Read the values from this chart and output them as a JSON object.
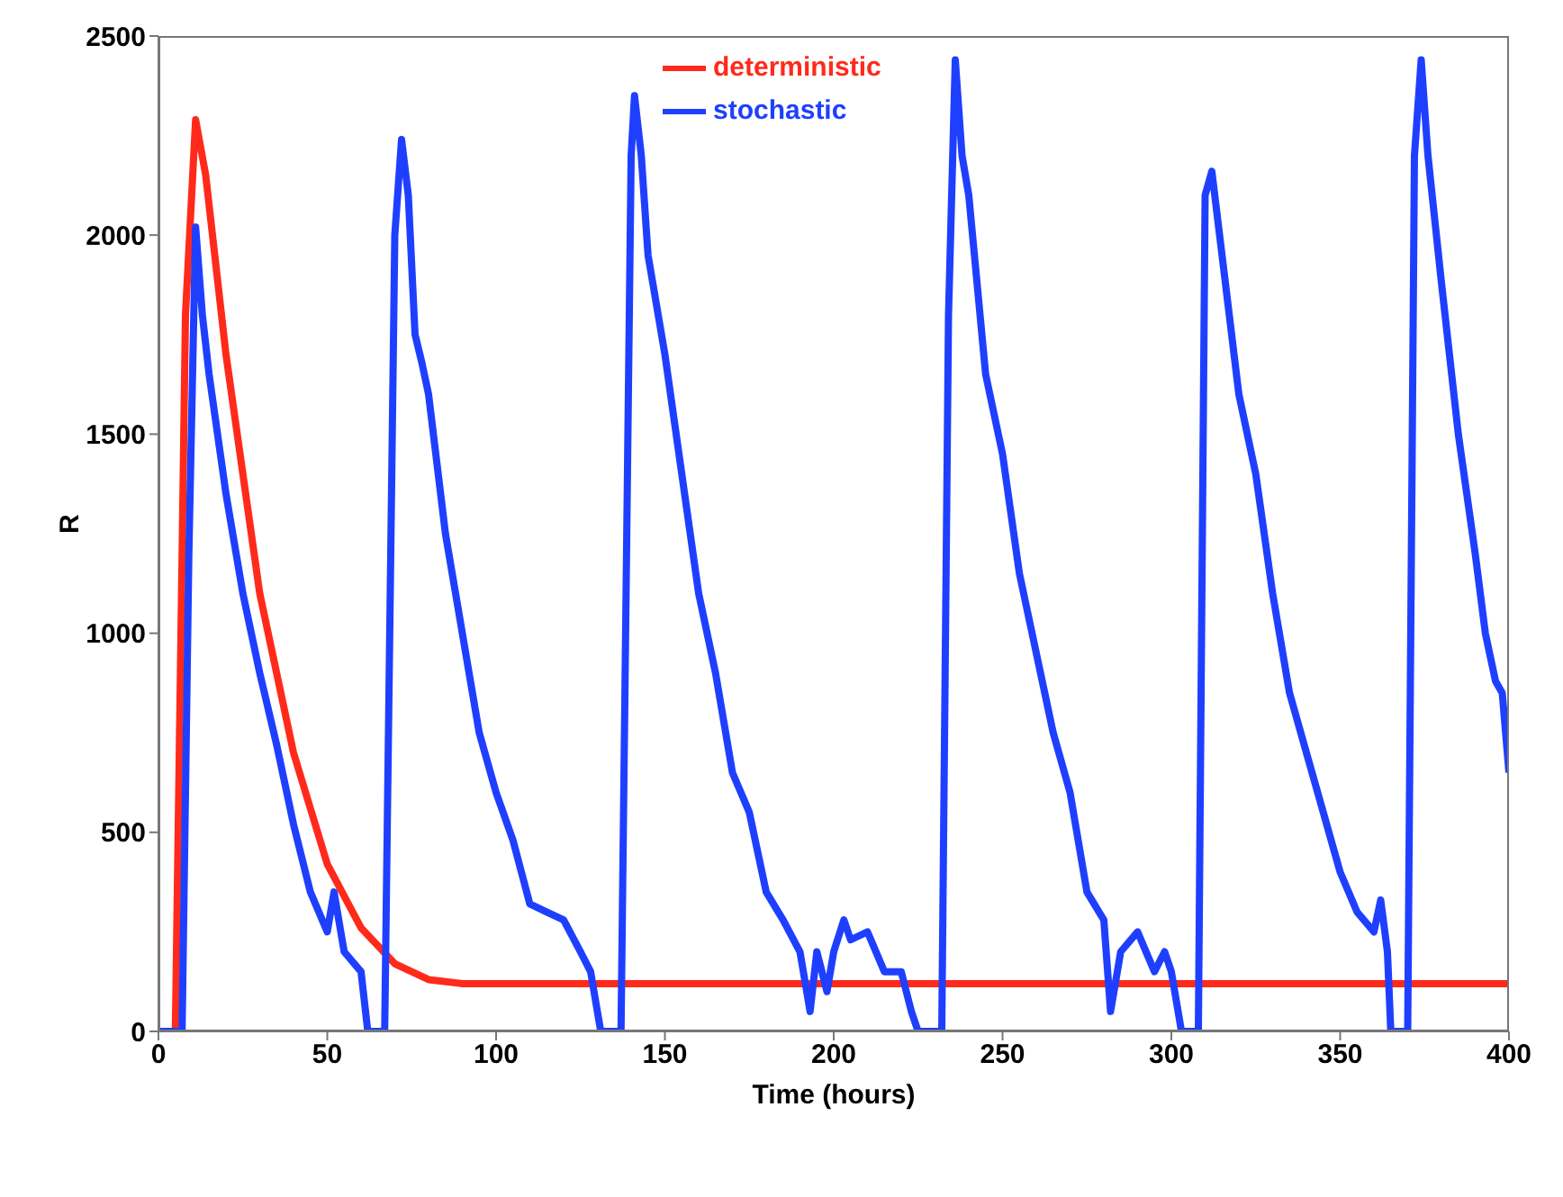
{
  "chart_data": {
    "type": "line",
    "xlabel": "Time (hours)",
    "ylabel": "R",
    "xlim": [
      0,
      400
    ],
    "xticks": [
      0,
      50,
      100,
      150,
      200,
      250,
      300,
      350,
      400
    ],
    "ylim": [
      0,
      2500
    ],
    "yticks": [
      0,
      500,
      1000,
      1500,
      2000,
      2500
    ],
    "grid": false,
    "legend": "top",
    "marker": "none",
    "line_style": "solid",
    "series": [
      {
        "name": "deterministic",
        "color": "#ff2a1a",
        "x": [
          0,
          5,
          8,
          11,
          14,
          20,
          30,
          40,
          50,
          60,
          70,
          80,
          90,
          100,
          400
        ],
        "values": [
          0,
          0,
          1800,
          2290,
          2150,
          1700,
          1100,
          700,
          420,
          260,
          170,
          130,
          120,
          120,
          120
        ]
      },
      {
        "name": "stochastic",
        "color": "#1f3fff",
        "x": [
          0,
          7,
          9,
          11,
          13,
          15,
          20,
          25,
          30,
          35,
          40,
          45,
          50,
          52,
          55,
          60,
          62,
          67,
          70,
          72,
          74,
          76,
          78,
          80,
          85,
          90,
          95,
          100,
          105,
          110,
          115,
          120,
          125,
          128,
          130,
          131,
          137,
          140,
          141,
          143,
          145,
          150,
          155,
          160,
          165,
          170,
          175,
          180,
          185,
          190,
          193,
          195,
          198,
          200,
          203,
          205,
          210,
          215,
          220,
          223,
          225,
          232,
          234,
          236,
          238,
          240,
          245,
          250,
          255,
          260,
          265,
          270,
          275,
          280,
          282,
          285,
          290,
          295,
          298,
          300,
          302,
          303,
          308,
          310,
          312,
          315,
          320,
          325,
          330,
          335,
          340,
          345,
          350,
          355,
          360,
          362,
          364,
          365,
          370,
          372,
          374,
          376,
          380,
          385,
          390,
          393,
          396,
          398,
          400
        ],
        "values": [
          0,
          0,
          1200,
          2020,
          1800,
          1650,
          1350,
          1100,
          900,
          720,
          520,
          350,
          250,
          350,
          200,
          150,
          0,
          0,
          2000,
          2240,
          2100,
          1750,
          1680,
          1600,
          1250,
          1000,
          750,
          600,
          480,
          320,
          300,
          280,
          200,
          150,
          50,
          0,
          0,
          2200,
          2350,
          2200,
          1950,
          1700,
          1400,
          1100,
          900,
          650,
          550,
          350,
          280,
          200,
          50,
          200,
          100,
          200,
          280,
          230,
          250,
          150,
          150,
          50,
          0,
          0,
          1800,
          2440,
          2200,
          2100,
          1650,
          1450,
          1150,
          950,
          750,
          600,
          350,
          280,
          50,
          200,
          250,
          150,
          200,
          150,
          50,
          0,
          0,
          2100,
          2160,
          1950,
          1600,
          1400,
          1100,
          850,
          700,
          550,
          400,
          300,
          250,
          330,
          200,
          0,
          0,
          2200,
          2440,
          2200,
          1880,
          1500,
          1200,
          1000,
          880,
          850,
          650
        ]
      }
    ]
  }
}
